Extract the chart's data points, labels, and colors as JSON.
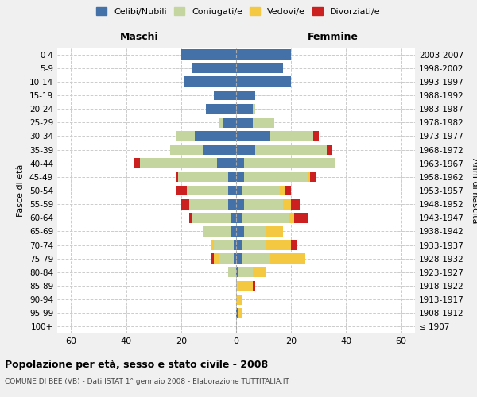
{
  "age_groups": [
    "100+",
    "95-99",
    "90-94",
    "85-89",
    "80-84",
    "75-79",
    "70-74",
    "65-69",
    "60-64",
    "55-59",
    "50-54",
    "45-49",
    "40-44",
    "35-39",
    "30-34",
    "25-29",
    "20-24",
    "15-19",
    "10-14",
    "5-9",
    "0-4"
  ],
  "birth_years": [
    "≤ 1907",
    "1908-1912",
    "1913-1917",
    "1918-1922",
    "1923-1927",
    "1928-1932",
    "1933-1937",
    "1938-1942",
    "1943-1947",
    "1948-1952",
    "1953-1957",
    "1958-1962",
    "1963-1967",
    "1968-1972",
    "1973-1977",
    "1978-1982",
    "1983-1987",
    "1988-1992",
    "1993-1997",
    "1998-2002",
    "2003-2007"
  ],
  "colors": {
    "celibi": "#4472a8",
    "coniugati": "#c5d5a0",
    "vedovi": "#f5c842",
    "divorziati": "#cc2020"
  },
  "maschi": {
    "celibi": [
      0,
      0,
      0,
      0,
      0,
      1,
      1,
      2,
      2,
      3,
      3,
      3,
      7,
      12,
      15,
      5,
      11,
      8,
      19,
      16,
      20
    ],
    "coniugati": [
      0,
      0,
      0,
      0,
      3,
      5,
      7,
      10,
      14,
      14,
      15,
      18,
      28,
      12,
      7,
      1,
      0,
      0,
      0,
      0,
      0
    ],
    "vedovi": [
      0,
      0,
      0,
      0,
      0,
      2,
      1,
      0,
      0,
      0,
      0,
      0,
      0,
      0,
      0,
      0,
      0,
      0,
      0,
      0,
      0
    ],
    "divorziati": [
      0,
      0,
      0,
      0,
      0,
      1,
      0,
      0,
      1,
      3,
      4,
      1,
      2,
      0,
      0,
      0,
      0,
      0,
      0,
      0,
      0
    ]
  },
  "femmine": {
    "celibi": [
      0,
      1,
      0,
      0,
      1,
      2,
      2,
      3,
      2,
      3,
      2,
      3,
      3,
      7,
      12,
      6,
      6,
      7,
      20,
      17,
      20
    ],
    "coniugati": [
      0,
      0,
      0,
      1,
      5,
      10,
      9,
      8,
      17,
      14,
      14,
      23,
      33,
      26,
      16,
      8,
      1,
      0,
      0,
      0,
      0
    ],
    "vedovi": [
      0,
      1,
      2,
      5,
      5,
      13,
      9,
      6,
      2,
      3,
      2,
      1,
      0,
      0,
      0,
      0,
      0,
      0,
      0,
      0,
      0
    ],
    "divorziati": [
      0,
      0,
      0,
      1,
      0,
      0,
      2,
      0,
      5,
      3,
      2,
      2,
      0,
      2,
      2,
      0,
      0,
      0,
      0,
      0,
      0
    ]
  },
  "xlim": 65,
  "title_main": "Popolazione per età, sesso e stato civile - 2008",
  "title_sub": "COMUNE DI BEE (VB) - Dati ISTAT 1° gennaio 2008 - Elaborazione TUTTITALIA.IT",
  "ylabel_left": "Fasce di età",
  "ylabel_right": "Anni di nascita",
  "xlabel_maschi": "Maschi",
  "xlabel_femmine": "Femmine",
  "legend_labels": [
    "Celibi/Nubili",
    "Coniugati/e",
    "Vedovi/e",
    "Divorziati/e"
  ],
  "bg_color": "#f0f0f0",
  "plot_bg": "#ffffff"
}
